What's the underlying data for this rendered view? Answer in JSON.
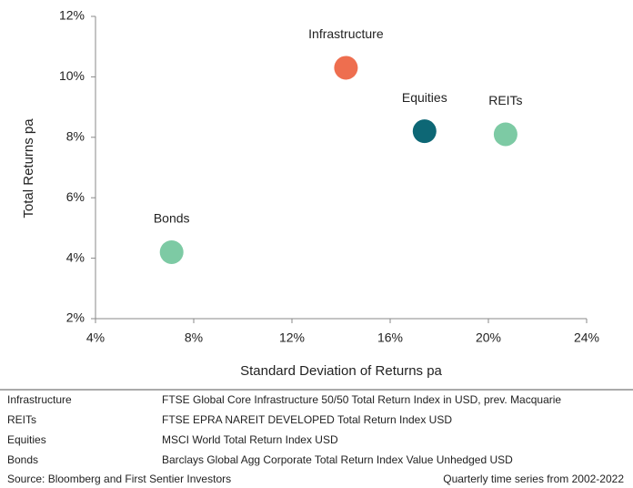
{
  "chart_data": {
    "type": "scatter",
    "x_label": "Standard Deviation of Returns pa",
    "y_label": "Total Returns pa",
    "xlim": [
      4,
      24
    ],
    "xticks": [
      {
        "value": 4,
        "label": "4%"
      },
      {
        "value": 8,
        "label": "8%"
      },
      {
        "value": 12,
        "label": "12%"
      },
      {
        "value": 16,
        "label": "16%"
      },
      {
        "value": 20,
        "label": "20%"
      },
      {
        "value": 24,
        "label": "24%"
      }
    ],
    "ylim": [
      2,
      12
    ],
    "yticks": [
      {
        "value": 2,
        "label": "2%"
      },
      {
        "value": 4,
        "label": "4%"
      },
      {
        "value": 6,
        "label": "6%"
      },
      {
        "value": 8,
        "label": "8%"
      },
      {
        "value": 10,
        "label": "10%"
      },
      {
        "value": 12,
        "label": "12%"
      }
    ],
    "grid": false,
    "series": [
      {
        "name": "Infrastructure",
        "color": "#ee6e4f",
        "x": [
          14.2
        ],
        "values": [
          10.3
        ]
      },
      {
        "name": "Equities",
        "color": "#0d6775",
        "x": [
          17.4
        ],
        "values": [
          8.2
        ]
      },
      {
        "name": "REITs",
        "color": "#7dcaa4",
        "x": [
          20.7
        ],
        "values": [
          8.1
        ]
      },
      {
        "name": "Bonds",
        "color": "#7dcaa4",
        "x": [
          7.1
        ],
        "values": [
          4.2
        ]
      }
    ]
  },
  "table": {
    "rows": [
      [
        "Infrastructure",
        "FTSE Global Core Infrastructure 50/50 Total Return Index in USD, prev. Macquarie"
      ],
      [
        "REITs",
        "FTSE EPRA NAREIT DEVELOPED Total Return Index USD"
      ],
      [
        "Equities",
        "MSCI World Total Return Index USD"
      ],
      [
        "Bonds",
        "Barclays Global Agg Corporate Total Return Index Value Unhedged USD"
      ]
    ]
  },
  "footer": {
    "source": "Source: Bloomberg and First Sentier Investors",
    "note": "Quarterly time series from 2002-2022"
  }
}
